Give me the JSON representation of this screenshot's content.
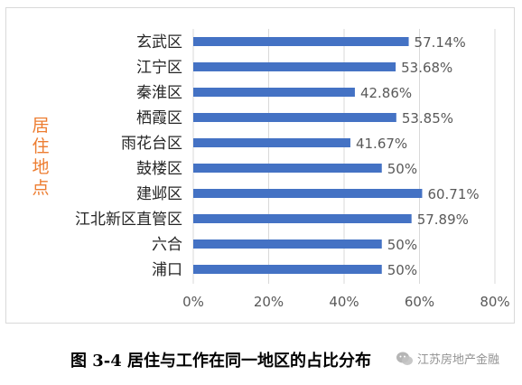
{
  "chart_data": {
    "type": "bar",
    "orientation": "horizontal",
    "categories": [
      "玄武区",
      "江宁区",
      "秦淮区",
      "栖霞区",
      "雨花台区",
      "鼓楼区",
      "建邺区",
      "江北新区直管区",
      "六合",
      "浦口"
    ],
    "values": [
      57.14,
      53.68,
      42.86,
      53.85,
      41.67,
      50,
      60.71,
      57.89,
      50,
      50
    ],
    "value_labels": [
      "57.14%",
      "53.68%",
      "42.86%",
      "53.85%",
      "41.67%",
      "50%",
      "60.71%",
      "57.89%",
      "50%",
      "50%"
    ],
    "ylabel": "居住地点",
    "xlim": [
      0,
      80
    ],
    "x_ticks": [
      "0%",
      "20%",
      "40%",
      "60%",
      "80%"
    ],
    "grid": "vertical",
    "bar_color": "#4472C4",
    "ylabel_color": "#ED7D31"
  },
  "caption": "图 3-4  居住与工作在同一地区的占比分布",
  "watermark": {
    "icon": "wechat-icon",
    "text": "江苏房地产金融"
  }
}
